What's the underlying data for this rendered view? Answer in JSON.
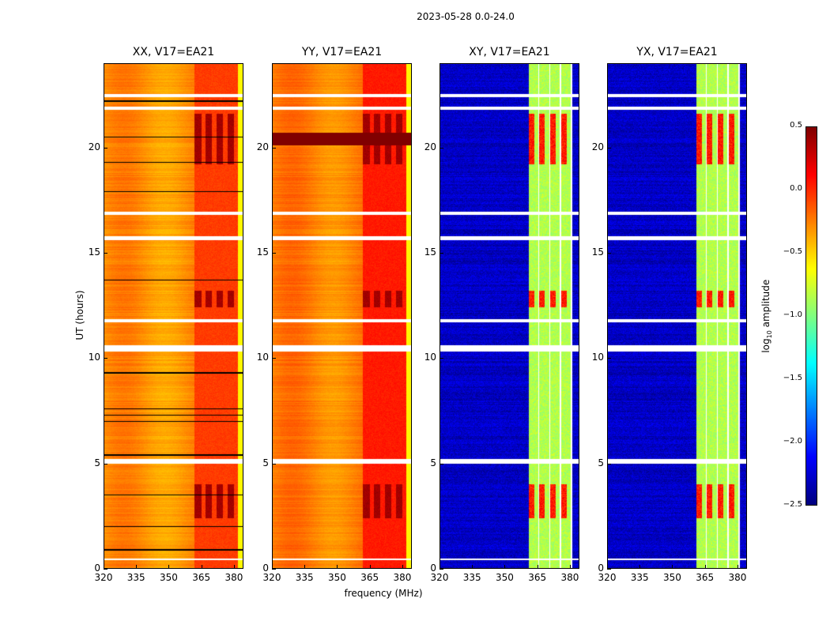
{
  "chart_data": {
    "type": "heatmap",
    "title": "2023-05-28 0.0-24.0",
    "xlabel": "frequency (MHz)",
    "ylabel": "UT (hours)",
    "xlim": [
      320,
      384.4
    ],
    "ylim": [
      0,
      24
    ],
    "xticks": [
      "320",
      "335",
      "350",
      "365",
      "380"
    ],
    "yticks": [
      "0",
      "5",
      "10",
      "15",
      "20"
    ],
    "panels": [
      {
        "title": "XX, V17=EA21",
        "base_level": -0.3,
        "band_level": -0.1,
        "band_range_mhz": [
          362,
          382
        ]
      },
      {
        "title": "YY, V17=EA21",
        "base_level": -0.25,
        "band_level": 0.0,
        "band_range_mhz": [
          362,
          382
        ]
      },
      {
        "title": "XY, V17=EA21",
        "base_level": -2.3,
        "band_level": -0.9,
        "band_range_mhz": [
          361,
          381
        ]
      },
      {
        "title": "YX, V17=EA21",
        "base_level": -2.3,
        "band_level": -0.9,
        "band_range_mhz": [
          361,
          381
        ]
      }
    ],
    "flagged_hours": [
      [
        0.4,
        0.5
      ],
      [
        5.0,
        5.2
      ],
      [
        10.3,
        10.6
      ],
      [
        11.7,
        11.85
      ],
      [
        15.6,
        15.8
      ],
      [
        16.8,
        16.95
      ],
      [
        21.8,
        21.95
      ],
      [
        22.4,
        22.55
      ]
    ],
    "active_hours": [
      [
        2.4,
        4.0
      ],
      [
        12.4,
        13.2
      ],
      [
        19.2,
        21.6
      ]
    ],
    "colorbar": {
      "label": "log10 amplitude",
      "range": [
        -2.5,
        0.5
      ],
      "ticks": [
        "0.5",
        "0.0",
        "−0.5",
        "−1.0",
        "−1.5",
        "−2.0",
        "−2.5"
      ],
      "colormap": "jet"
    }
  }
}
